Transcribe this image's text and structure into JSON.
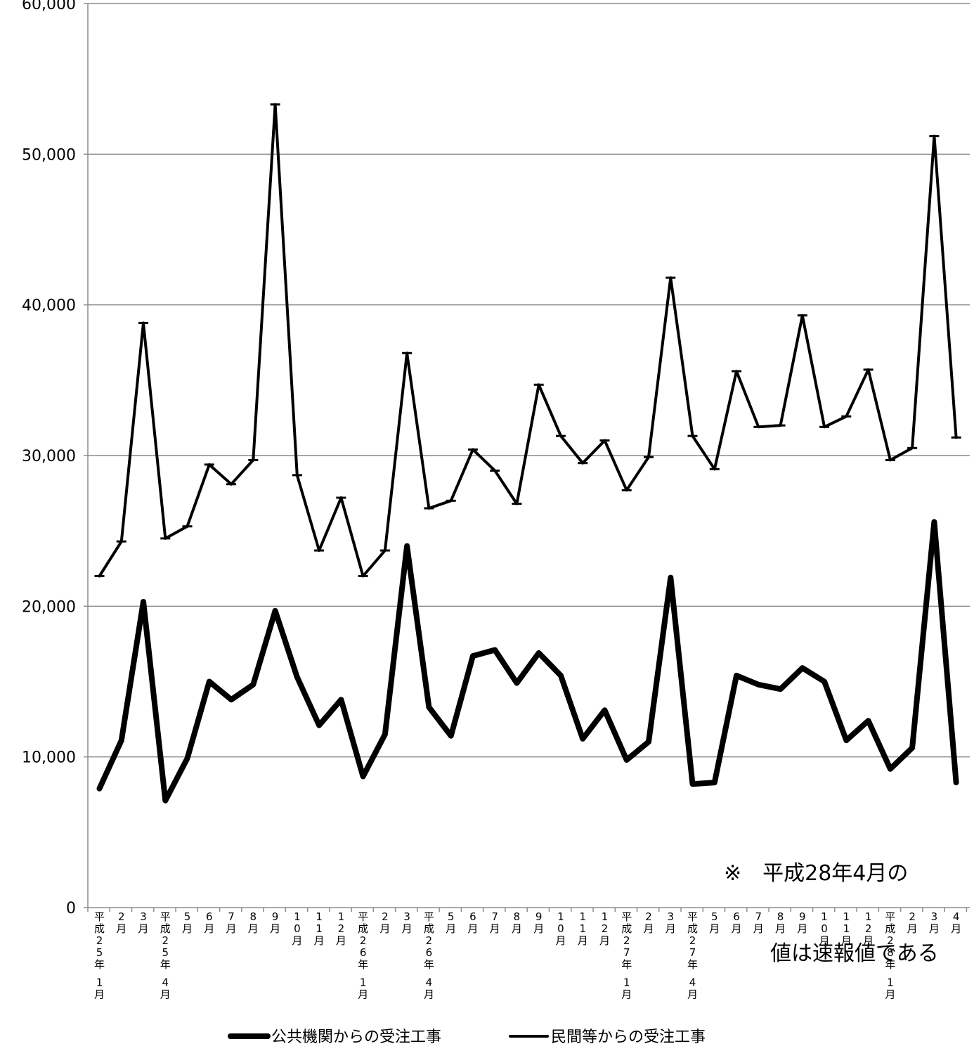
{
  "chart_data": {
    "type": "line",
    "ylim": [
      0,
      60000
    ],
    "y_ticks": [
      "0",
      "10,000",
      "20,000",
      "30,000",
      "40,000",
      "50,000",
      "60,000"
    ],
    "grid": true,
    "legend_position": "bottom",
    "categories": [
      "平成25年 1月",
      "2月",
      "3月",
      "平成25年 4月",
      "5月",
      "6月",
      "7月",
      "8月",
      "9月",
      "10月",
      "11月",
      "12月",
      "平成26年 1月",
      "2月",
      "3月",
      "平成26年 4月",
      "5月",
      "6月",
      "7月",
      "8月",
      "9月",
      "10月",
      "11月",
      "12月",
      "平成27年 1月",
      "2月",
      "3月",
      "平成27年 4月",
      "5月",
      "6月",
      "7月",
      "8月",
      "9月",
      "10月",
      "11月",
      "12月",
      "平成28年 1月",
      "2月",
      "3月",
      "4月"
    ],
    "series": [
      {
        "name": "公共機関からの受注工事",
        "values": [
          7900,
          11100,
          20300,
          7100,
          9900,
          15000,
          13800,
          14800,
          19700,
          15300,
          12100,
          13800,
          8700,
          11500,
          24000,
          13300,
          11400,
          16700,
          17100,
          14900,
          16900,
          15400,
          11200,
          13100,
          9800,
          11000,
          21900,
          8200,
          8300,
          15400,
          14800,
          14500,
          15900,
          15000,
          11100,
          12400,
          9200,
          10600,
          25600,
          8300
        ]
      },
      {
        "name": "民間等からの受注工事",
        "values": [
          22000,
          24300,
          38800,
          24500,
          25300,
          29400,
          28100,
          29700,
          53300,
          28700,
          23700,
          27200,
          22000,
          23700,
          36800,
          26500,
          27000,
          30400,
          29000,
          26800,
          34700,
          31300,
          29500,
          31000,
          27700,
          29900,
          41800,
          31300,
          29100,
          35600,
          31900,
          32000,
          39300,
          31900,
          32600,
          35700,
          29700,
          30500,
          51200,
          31200
        ]
      }
    ],
    "annotation": [
      "※　平成28年4月の",
      "値は速報値である"
    ]
  }
}
